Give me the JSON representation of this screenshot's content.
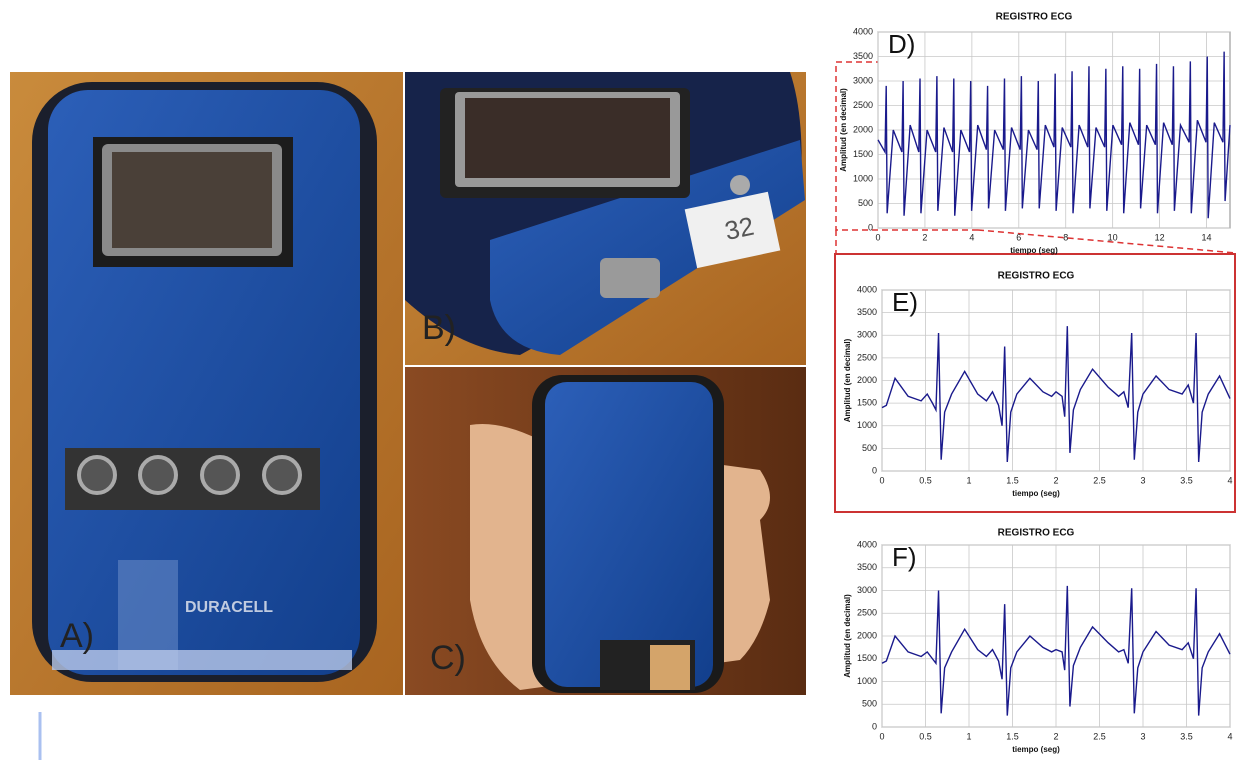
{
  "photo_labels": [
    "A)",
    "B)",
    "C)"
  ],
  "chart_data": [
    {
      "type": "line",
      "title": "REGISTRO ECG",
      "panel": "D)",
      "x_label": "tiempo (seg)",
      "y_label": "Amplitud (en decimal)",
      "xlim": [
        0,
        15
      ],
      "xticks": [
        0,
        2,
        4,
        6,
        8,
        10,
        12,
        14
      ],
      "ylim": [
        0,
        4000
      ],
      "yticks": [
        0,
        500,
        1000,
        1500,
        2000,
        2500,
        3000,
        3500,
        4000
      ],
      "grid": true,
      "series": [
        {
          "color": "#1a1a8c",
          "x": [
            0,
            0.3,
            0.35,
            0.39,
            0.65,
            1.02,
            1.07,
            1.11,
            1.37,
            1.74,
            1.79,
            1.83,
            2.09,
            2.46,
            2.51,
            2.55,
            2.81,
            3.18,
            3.23,
            3.27,
            3.53,
            3.9,
            3.95,
            3.99,
            4.25,
            4.62,
            4.67,
            4.71,
            4.97,
            5.34,
            5.39,
            5.43,
            5.69,
            6.06,
            6.11,
            6.15,
            6.41,
            6.78,
            6.83,
            6.87,
            7.13,
            7.5,
            7.55,
            7.59,
            7.85,
            8.22,
            8.27,
            8.31,
            8.57,
            8.94,
            8.99,
            9.03,
            9.29,
            9.66,
            9.71,
            9.75,
            10.01,
            10.38,
            10.43,
            10.47,
            10.73,
            11.1,
            11.15,
            11.19,
            11.45,
            11.82,
            11.87,
            11.91,
            12.17,
            12.54,
            12.59,
            12.63,
            12.89,
            13.26,
            13.31,
            13.35,
            13.61,
            13.98,
            14.03,
            14.07,
            14.33,
            14.7,
            14.75,
            14.79,
            15
          ],
          "values": [
            1800,
            1550,
            2900,
            300,
            2000,
            1550,
            3000,
            250,
            2100,
            1550,
            3050,
            300,
            2000,
            1550,
            3100,
            350,
            2050,
            1550,
            3050,
            250,
            2000,
            1550,
            3000,
            350,
            2100,
            1600,
            2900,
            400,
            2000,
            1600,
            3050,
            350,
            2050,
            1600,
            3100,
            400,
            2000,
            1600,
            3000,
            400,
            2100,
            1650,
            3150,
            350,
            2050,
            1650,
            3200,
            300,
            2100,
            1650,
            3300,
            400,
            2050,
            1650,
            3250,
            350,
            2100,
            1700,
            3300,
            300,
            2150,
            1700,
            3250,
            400,
            2100,
            1700,
            3350,
            300,
            2150,
            1700,
            3300,
            350,
            2100,
            1750,
            3400,
            300,
            2200,
            1750,
            3500,
            200,
            2150,
            1750,
            3600,
            550,
            2100
          ]
        }
      ]
    },
    {
      "type": "line",
      "title": "REGISTRO ECG",
      "panel": "E)",
      "x_label": "tiempo (seg)",
      "y_label": "Amplitud (en decimal)",
      "xlim": [
        0,
        4
      ],
      "xticks": [
        0,
        0.5,
        1,
        1.5,
        2,
        2.5,
        3,
        3.5,
        4
      ],
      "ylim": [
        0,
        4000
      ],
      "yticks": [
        0,
        500,
        1000,
        1500,
        2000,
        2500,
        3000,
        3500,
        4000
      ],
      "grid": true,
      "series": [
        {
          "color": "#1a1a8c",
          "x": [
            0,
            0.05,
            0.15,
            0.3,
            0.45,
            0.52,
            0.58,
            0.62,
            0.65,
            0.68,
            0.72,
            0.8,
            0.95,
            1.1,
            1.2,
            1.27,
            1.34,
            1.38,
            1.41,
            1.44,
            1.48,
            1.55,
            1.7,
            1.85,
            1.95,
            2,
            2.07,
            2.1,
            2.13,
            2.16,
            2.2,
            2.28,
            2.42,
            2.6,
            2.72,
            2.78,
            2.83,
            2.87,
            2.9,
            2.94,
            3,
            3.15,
            3.3,
            3.45,
            3.52,
            3.58,
            3.61,
            3.64,
            3.68,
            3.75,
            3.88,
            4
          ],
          "values": [
            1400,
            1450,
            2050,
            1650,
            1550,
            1700,
            1500,
            1350,
            3050,
            250,
            1300,
            1700,
            2200,
            1700,
            1550,
            1750,
            1450,
            1000,
            2750,
            200,
            1300,
            1700,
            2050,
            1750,
            1650,
            1750,
            1650,
            1200,
            3200,
            400,
            1350,
            1800,
            2250,
            1850,
            1650,
            1750,
            1400,
            3050,
            250,
            1300,
            1700,
            2100,
            1800,
            1700,
            1900,
            1500,
            3050,
            200,
            1300,
            1700,
            2100,
            1600
          ]
        }
      ]
    },
    {
      "type": "line",
      "title": "REGISTRO ECG",
      "panel": "F)",
      "x_label": "tiempo (seg)",
      "y_label": "Amplitud (en decimal)",
      "xlim": [
        0,
        4
      ],
      "xticks": [
        0,
        0.5,
        1,
        1.5,
        2,
        2.5,
        3,
        3.5,
        4
      ],
      "ylim": [
        0,
        4000
      ],
      "yticks": [
        0,
        500,
        1000,
        1500,
        2000,
        2500,
        3000,
        3500,
        4000
      ],
      "grid": true,
      "series": [
        {
          "color": "#1a1a8c",
          "x": [
            0,
            0.05,
            0.15,
            0.3,
            0.45,
            0.52,
            0.58,
            0.62,
            0.65,
            0.68,
            0.72,
            0.8,
            0.95,
            1.1,
            1.2,
            1.27,
            1.34,
            1.38,
            1.41,
            1.44,
            1.48,
            1.55,
            1.7,
            1.85,
            1.95,
            2,
            2.07,
            2.1,
            2.13,
            2.16,
            2.2,
            2.28,
            2.42,
            2.6,
            2.72,
            2.78,
            2.83,
            2.87,
            2.9,
            2.94,
            3,
            3.15,
            3.3,
            3.45,
            3.52,
            3.58,
            3.61,
            3.64,
            3.68,
            3.75,
            3.88,
            4
          ],
          "values": [
            1400,
            1450,
            2000,
            1650,
            1550,
            1650,
            1500,
            1400,
            3000,
            300,
            1300,
            1650,
            2150,
            1700,
            1550,
            1700,
            1450,
            1050,
            2700,
            250,
            1300,
            1650,
            2000,
            1750,
            1650,
            1700,
            1650,
            1250,
            3100,
            450,
            1350,
            1750,
            2200,
            1850,
            1650,
            1700,
            1400,
            3050,
            300,
            1300,
            1650,
            2100,
            1800,
            1700,
            1850,
            1500,
            3050,
            250,
            1300,
            1650,
            2050,
            1600
          ]
        }
      ]
    }
  ]
}
